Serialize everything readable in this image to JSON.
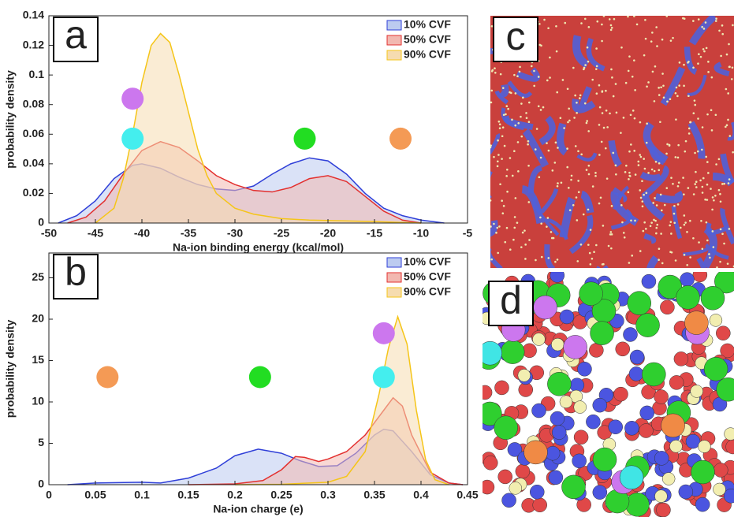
{
  "chart_data": [
    {
      "type": "line",
      "panel_label": "a",
      "xlabel": "Na-ion binding energy (kcal/mol)",
      "ylabel": "probability density",
      "xlim": [
        -50,
        -5
      ],
      "xticks": [
        -50,
        -45,
        -40,
        -35,
        -30,
        -25,
        -20,
        -15,
        -10,
        -5
      ],
      "ylim": [
        0,
        0.14
      ],
      "yticks": [
        0,
        0.02,
        0.04,
        0.06,
        0.08,
        0.1,
        0.12,
        0.14
      ],
      "legend": "upper right",
      "series": [
        {
          "name": "10% CVF",
          "color": "#2f3fd8",
          "fill": "#bccbf0",
          "x": [
            -49,
            -47,
            -45,
            -43,
            -41,
            -40,
            -38,
            -36,
            -34,
            -32,
            -30,
            -28,
            -26,
            -24,
            -22,
            -20,
            -18,
            -16,
            -14,
            -12,
            -10,
            -7.5
          ],
          "values": [
            0,
            0.005,
            0.015,
            0.03,
            0.039,
            0.04,
            0.037,
            0.031,
            0.026,
            0.023,
            0.022,
            0.025,
            0.033,
            0.04,
            0.044,
            0.042,
            0.033,
            0.02,
            0.01,
            0.005,
            0.002,
            0
          ]
        },
        {
          "name": "50% CVF",
          "color": "#e3302f",
          "fill": "#f2b8b0",
          "x": [
            -48,
            -46,
            -44,
            -42,
            -40,
            -38,
            -36,
            -34,
            -32,
            -30,
            -28,
            -26,
            -24,
            -22,
            -20,
            -18,
            -16,
            -14,
            -12,
            -10
          ],
          "values": [
            0,
            0.004,
            0.015,
            0.033,
            0.049,
            0.055,
            0.051,
            0.042,
            0.032,
            0.026,
            0.022,
            0.021,
            0.024,
            0.03,
            0.032,
            0.028,
            0.018,
            0.008,
            0.002,
            0
          ]
        },
        {
          "name": "90% CVF",
          "color": "#f5c518",
          "fill": "#f6dcb0",
          "x": [
            -45,
            -43,
            -42,
            -41,
            -40,
            -39,
            -38,
            -37,
            -36,
            -35,
            -34,
            -33,
            -32,
            -30,
            -28,
            -25,
            -22,
            -15,
            -10
          ],
          "values": [
            0,
            0.01,
            0.03,
            0.06,
            0.095,
            0.12,
            0.128,
            0.122,
            0.1,
            0.075,
            0.05,
            0.032,
            0.02,
            0.01,
            0.006,
            0.003,
            0.002,
            0.001,
            0
          ]
        }
      ],
      "markers": [
        {
          "x": -41,
          "y": 0.084,
          "color": "#cc77ee"
        },
        {
          "x": -41,
          "y": 0.057,
          "color": "#44eeee"
        },
        {
          "x": -22.5,
          "y": 0.057,
          "color": "#22dd22"
        },
        {
          "x": -12.2,
          "y": 0.057,
          "color": "#f49a55"
        }
      ]
    },
    {
      "type": "line",
      "panel_label": "b",
      "xlabel": "Na-ion charge (e)",
      "ylabel": "probability density",
      "xlim": [
        0,
        0.45
      ],
      "xticks": [
        0,
        0.05,
        0.1,
        0.15,
        0.2,
        0.25,
        0.3,
        0.35,
        0.4,
        0.45
      ],
      "ylim": [
        0,
        28
      ],
      "yticks": [
        0,
        5,
        10,
        15,
        20,
        25
      ],
      "legend": "upper right",
      "series": [
        {
          "name": "10% CVF",
          "color": "#2f3fd8",
          "fill": "#bccbf0",
          "x": [
            0.02,
            0.05,
            0.1,
            0.12,
            0.15,
            0.18,
            0.2,
            0.225,
            0.25,
            0.27,
            0.29,
            0.31,
            0.33,
            0.35,
            0.36,
            0.37,
            0.39,
            0.41,
            0.43,
            0.445
          ],
          "values": [
            0,
            0.2,
            0.3,
            0.2,
            0.8,
            2,
            3.5,
            4.3,
            3.8,
            2.9,
            2.2,
            2.3,
            3.8,
            6,
            6.7,
            6.5,
            4,
            1.2,
            0.2,
            0
          ]
        },
        {
          "name": "50% CVF",
          "color": "#e3302f",
          "fill": "#f2b8b0",
          "x": [
            0.15,
            0.2,
            0.23,
            0.25,
            0.265,
            0.275,
            0.29,
            0.3,
            0.32,
            0.34,
            0.36,
            0.37,
            0.38,
            0.39,
            0.41,
            0.43,
            0.445
          ],
          "values": [
            0,
            0.1,
            0.5,
            1.8,
            3.4,
            3.3,
            2.8,
            3.1,
            4,
            6,
            9,
            10.5,
            9.5,
            6,
            1.5,
            0.2,
            0
          ]
        },
        {
          "name": "90% CVF",
          "color": "#f5c518",
          "fill": "#f6dcb0",
          "x": [
            0.2,
            0.25,
            0.3,
            0.32,
            0.34,
            0.355,
            0.365,
            0.375,
            0.385,
            0.395,
            0.405,
            0.415,
            0.43
          ],
          "values": [
            0,
            0.05,
            0.3,
            1,
            4,
            11,
            16.5,
            20.3,
            17,
            9,
            3,
            0.6,
            0
          ]
        }
      ],
      "markers": [
        {
          "x": 0.063,
          "y": 13,
          "color": "#f49a55"
        },
        {
          "x": 0.227,
          "y": 13,
          "color": "#22dd22"
        },
        {
          "x": 0.36,
          "y": 13,
          "color": "#44eeee"
        },
        {
          "x": 0.36,
          "y": 18.3,
          "color": "#cc77ee"
        }
      ]
    }
  ],
  "images": [
    {
      "panel_label": "c"
    },
    {
      "panel_label": "d"
    }
  ]
}
